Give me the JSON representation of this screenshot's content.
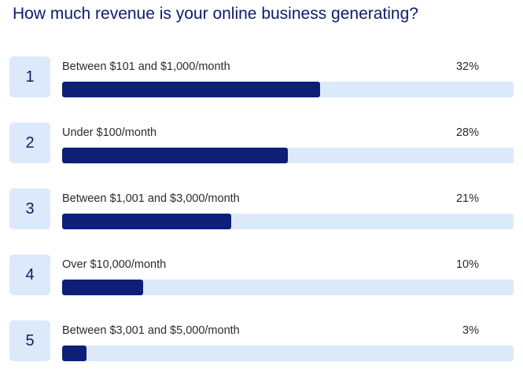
{
  "page": {
    "title": "How much revenue is your online business generating?"
  },
  "chart_data": {
    "type": "bar",
    "title": "How much revenue is your online business generating?",
    "orientation": "horizontal",
    "bar_max_percent": 56,
    "categories": [
      "Between $101 and $1,000/month",
      "Under $100/month",
      "Between $1,001 and $3,000/month",
      "Over $10,000/month",
      "Between $3,001 and $5,000/month"
    ],
    "values": [
      32,
      28,
      21,
      10,
      3
    ],
    "rows": [
      {
        "rank": "1",
        "label": "Between $101 and $1,000/month",
        "percent_text": "32%",
        "value": 32
      },
      {
        "rank": "2",
        "label": "Under $100/month",
        "percent_text": "28%",
        "value": 28
      },
      {
        "rank": "3",
        "label": "Between $1,001 and $3,000/month",
        "percent_text": "21%",
        "value": 21
      },
      {
        "rank": "4",
        "label": "Over $10,000/month",
        "percent_text": "10%",
        "value": 10
      },
      {
        "rank": "5",
        "label": "Between $3,001 and $5,000/month",
        "percent_text": "3%",
        "value": 3
      }
    ],
    "colors": {
      "bar": "#0e1f78",
      "track": "#dce9fb",
      "rank_box": "#dce9fb",
      "title": "#0d1b6e"
    }
  }
}
